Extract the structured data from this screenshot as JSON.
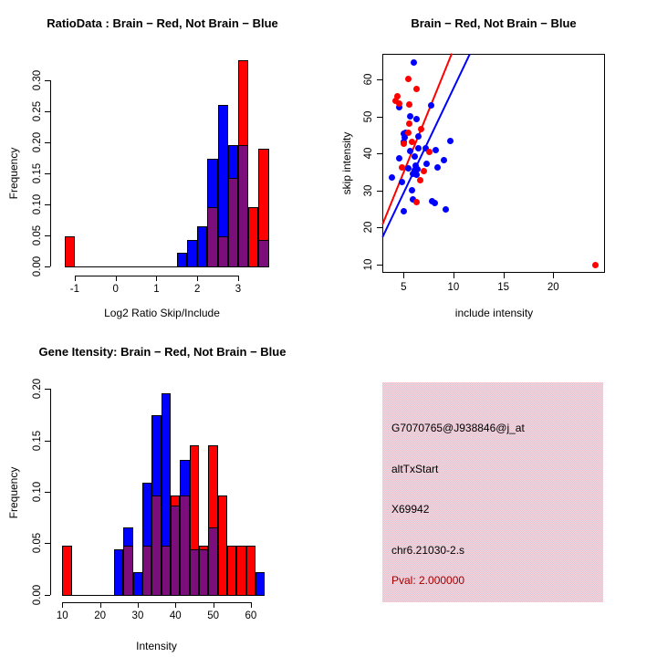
{
  "colors": {
    "red": "#FF0000",
    "blue": "#0000FF",
    "purple": "#7C0E7C",
    "pink_a": "#F4BECB",
    "pink_b": "#E3DBE6",
    "pval_text": "#A00000",
    "black": "#000000"
  },
  "chart_data": [
    {
      "id": "ratio_hist",
      "type": "bar",
      "title": "RatioData : Brain − Red, Not Brain − Blue",
      "xlabel": "Log2 Ratio Skip/Include",
      "ylabel": "Frequency",
      "x_ticks": [
        -1,
        0,
        1,
        2,
        3
      ],
      "y_ticks": [
        "0.00",
        "0.05",
        "0.10",
        "0.15",
        "0.20",
        "0.25",
        "0.30"
      ],
      "xlim": [
        -1.45,
        3.85
      ],
      "ylim": [
        0,
        0.3
      ],
      "grid": false,
      "legend": "none",
      "bin_width": 0.25,
      "bar_range": [
        -1.25,
        3.75
      ],
      "series_note": "red = Brain (n/21), blue = Not Brain (n/46), purple = overlap min(red,blue)",
      "bins": [
        {
          "x": -1.25,
          "blue": 0,
          "red": 0.048
        },
        {
          "x": 1.5,
          "blue": 0.022,
          "red": 0
        },
        {
          "x": 1.75,
          "blue": 0.043,
          "red": 0
        },
        {
          "x": 2.0,
          "blue": 0.065,
          "red": 0
        },
        {
          "x": 2.25,
          "blue": 0.174,
          "red": 0.095
        },
        {
          "x": 2.5,
          "blue": 0.261,
          "red": 0.048
        },
        {
          "x": 2.75,
          "blue": 0.196,
          "red": 0.143
        },
        {
          "x": 3.0,
          "blue": 0.196,
          "red": 0.333
        },
        {
          "x": 3.25,
          "blue": 0,
          "red": 0.095
        },
        {
          "x": 3.5,
          "blue": 0.043,
          "red": 0.19
        }
      ]
    },
    {
      "id": "intensity_scatter",
      "type": "scatter",
      "title": "Brain − Red, Not Brain − Blue",
      "xlabel": "include intensity",
      "ylabel": "skip intensity",
      "x_ticks": [
        5,
        10,
        15,
        20
      ],
      "y_ticks": [
        10,
        20,
        30,
        40,
        50,
        60
      ],
      "xlim": [
        2.9,
        25.2
      ],
      "ylim": [
        7.8,
        67.0
      ],
      "grid": false,
      "red_points": [
        [
          5.5,
          60.2
        ],
        [
          6.3,
          57.5
        ],
        [
          4.4,
          55.5
        ],
        [
          4.2,
          54.3
        ],
        [
          4.6,
          53.4
        ],
        [
          5.6,
          53.3
        ],
        [
          5.6,
          48.0
        ],
        [
          6.8,
          46.6
        ],
        [
          5.5,
          45.6
        ],
        [
          5.8,
          43.2
        ],
        [
          5.0,
          42.7
        ],
        [
          7.6,
          40.3
        ],
        [
          4.8,
          36.2
        ],
        [
          7.0,
          35.2
        ],
        [
          6.7,
          32.8
        ],
        [
          6.3,
          26.9
        ],
        [
          24.2,
          10.0
        ]
      ],
      "blue_points": [
        [
          6.0,
          64.6
        ],
        [
          4.6,
          52.5
        ],
        [
          7.8,
          53.1
        ],
        [
          5.7,
          50.0
        ],
        [
          6.3,
          49.2
        ],
        [
          5.2,
          45.7
        ],
        [
          5.0,
          45.3
        ],
        [
          5.1,
          44.3
        ],
        [
          6.5,
          44.6
        ],
        [
          5.0,
          43.2
        ],
        [
          9.7,
          43.3
        ],
        [
          6.5,
          41.4
        ],
        [
          7.2,
          41.3
        ],
        [
          8.2,
          41.0
        ],
        [
          5.7,
          40.6
        ],
        [
          6.1,
          39.1
        ],
        [
          9.0,
          38.2
        ],
        [
          4.6,
          38.6
        ],
        [
          7.3,
          37.1
        ],
        [
          6.2,
          36.8
        ],
        [
          5.5,
          36.0
        ],
        [
          6.4,
          35.8
        ],
        [
          6.1,
          35.4
        ],
        [
          8.4,
          36.2
        ],
        [
          5.9,
          34.6
        ],
        [
          6.3,
          34.3
        ],
        [
          3.8,
          33.5
        ],
        [
          4.8,
          32.2
        ],
        [
          5.8,
          30.0
        ],
        [
          5.9,
          27.7
        ],
        [
          7.9,
          27.2
        ],
        [
          8.1,
          26.6
        ],
        [
          5.0,
          24.5
        ],
        [
          9.2,
          24.8
        ]
      ],
      "red_line": {
        "x1": 2.87,
        "y1": 21.0,
        "x2": 9.8,
        "y2": 67.0
      },
      "blue_line": {
        "x1": 2.87,
        "y1": 17.7,
        "x2": 11.6,
        "y2": 67.0
      }
    },
    {
      "id": "gene_intensity_hist",
      "type": "bar",
      "title": "Gene Itensity: Brain − Red, Not Brain − Blue",
      "xlabel": "Intensity",
      "ylabel": "Frequency",
      "x_ticks": [
        10,
        20,
        30,
        40,
        50,
        60
      ],
      "y_ticks": [
        "0.00",
        "0.05",
        "0.10",
        "0.15",
        "0.20"
      ],
      "xlim": [
        8,
        66
      ],
      "ylim": [
        0,
        0.2
      ],
      "grid": false,
      "legend": "none",
      "bin_width": 2.5,
      "bar_range": [
        10,
        63.75
      ],
      "series_note": "red = Brain (n/21), blue = Not Brain (n/46), purple = overlap min(red,blue)",
      "bins": [
        {
          "x": 10.0,
          "blue": 0,
          "red": 0.048
        },
        {
          "x": 23.75,
          "blue": 0.044,
          "red": 0
        },
        {
          "x": 26.25,
          "blue": 0.065,
          "red": 0.048
        },
        {
          "x": 28.75,
          "blue": 0.022,
          "red": 0
        },
        {
          "x": 31.25,
          "blue": 0.109,
          "red": 0.048
        },
        {
          "x": 33.75,
          "blue": 0.174,
          "red": 0.096
        },
        {
          "x": 36.25,
          "blue": 0.196,
          "red": 0.048
        },
        {
          "x": 38.75,
          "blue": 0.087,
          "red": 0.096
        },
        {
          "x": 41.25,
          "blue": 0.131,
          "red": 0.096
        },
        {
          "x": 43.75,
          "blue": 0.044,
          "red": 0.145
        },
        {
          "x": 46.25,
          "blue": 0.044,
          "red": 0.048
        },
        {
          "x": 48.75,
          "blue": 0.065,
          "red": 0.145
        },
        {
          "x": 51.25,
          "blue": 0,
          "red": 0.096
        },
        {
          "x": 53.75,
          "blue": 0,
          "red": 0.048
        },
        {
          "x": 56.25,
          "blue": 0,
          "red": 0.048
        },
        {
          "x": 58.75,
          "blue": 0,
          "red": 0.048
        },
        {
          "x": 61.25,
          "blue": 0.022,
          "red": 0
        }
      ]
    },
    {
      "id": "info_panel",
      "type": "table",
      "lines": [
        {
          "text": "G7070765@J938846@j_at",
          "color": "#000000"
        },
        {
          "text": "altTxStart",
          "color": "#000000"
        },
        {
          "text": "X69942",
          "color": "#000000"
        },
        {
          "text": "chr6.21030-2.s",
          "color": "#000000"
        },
        {
          "text": "Pval: 2.000000",
          "color": "#A00000"
        }
      ]
    }
  ]
}
